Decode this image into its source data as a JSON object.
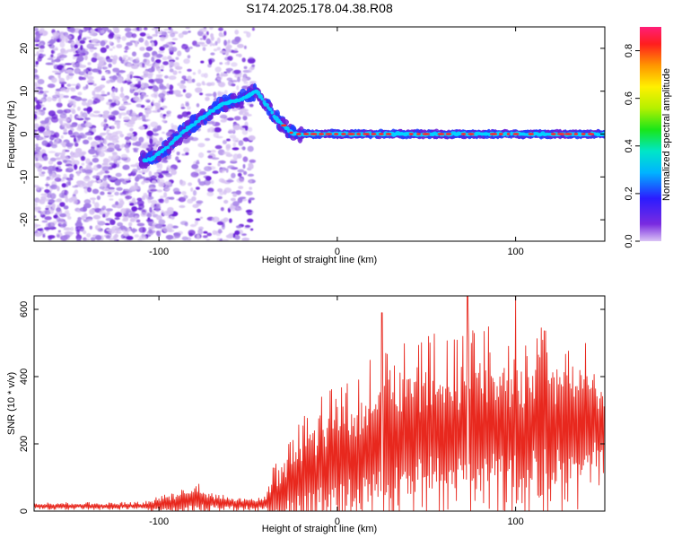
{
  "title": "S174.2025.178.04.38.R08",
  "colors": {
    "snr_line": "#e8281e",
    "speckle_light": "#d6c2f2",
    "speckle_mid": "#a27ce6",
    "speckle_dark": "#6a1fd8",
    "ridge_outer": "#1f3cff",
    "ridge_mid": "#00d7ff",
    "ridge_core": "#ff2a2a"
  },
  "chart_data": [
    {
      "type": "heatmap",
      "xlabel": "Height of straight line (km)",
      "ylabel": "Frequency (Hz)",
      "xlim": [
        -170,
        150
      ],
      "ylim": [
        -25,
        25
      ],
      "x_ticks": [
        -100,
        0,
        100
      ],
      "y_ticks": [
        -20,
        -10,
        0,
        10,
        20
      ],
      "colorbar": {
        "label": "Normalized spectral amplitude",
        "range": [
          0.0,
          0.9
        ],
        "ticks": [
          0.0,
          0.2,
          0.4,
          0.6,
          0.8
        ],
        "colormap": "rainbow (violet to magenta)"
      },
      "ridge": {
        "x": [
          -105,
          -95,
          -85,
          -75,
          -65,
          -55,
          -45,
          -40,
          -35,
          -30,
          -25,
          -20,
          0,
          50,
          100,
          150
        ],
        "y": [
          -6,
          -3,
          1,
          4,
          7,
          8,
          10,
          7,
          4,
          2,
          0,
          0,
          0,
          0,
          0,
          0
        ]
      },
      "noise_region": "x < -95 (broadband speckle)",
      "grid": false
    },
    {
      "type": "line",
      "xlabel": "Height of straight line (km)",
      "ylabel": "SNR (10 * v/v)",
      "xlim": [
        -170,
        150
      ],
      "ylim": [
        0,
        640
      ],
      "x_ticks": [
        -100,
        0,
        100
      ],
      "y_ticks": [
        0,
        200,
        400,
        600
      ],
      "envelope": {
        "x": [
          -170,
          -110,
          -90,
          -80,
          -70,
          -55,
          -40,
          -35,
          -25,
          -15,
          0,
          15,
          25,
          40,
          60,
          80,
          100,
          120,
          140,
          150
        ],
        "base": [
          15,
          15,
          25,
          35,
          25,
          20,
          20,
          40,
          80,
          110,
          140,
          170,
          200,
          220,
          230,
          240,
          240,
          250,
          260,
          250
        ],
        "amp": [
          10,
          12,
          40,
          55,
          30,
          20,
          25,
          120,
          170,
          220,
          250,
          270,
          290,
          300,
          300,
          310,
          310,
          300,
          240,
          180
        ]
      },
      "peaks": [
        {
          "x": 73,
          "y": 640
        },
        {
          "x": 100,
          "y": 640
        },
        {
          "x": 25,
          "y": 590
        }
      ],
      "grid": false
    }
  ]
}
